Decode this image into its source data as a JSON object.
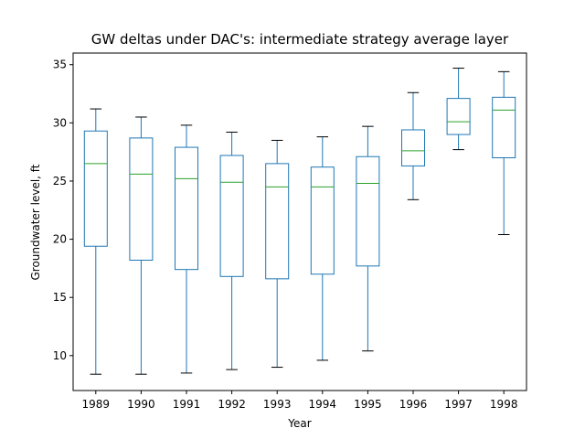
{
  "chart_data": {
    "type": "box",
    "title": "GW deltas under DAC's: intermediate strategy average layer",
    "xlabel": "Year",
    "ylabel": "Groundwater level, ft",
    "ylim": [
      7,
      36
    ],
    "yticks": [
      10,
      15,
      20,
      25,
      30,
      35
    ],
    "grid": false,
    "categories": [
      "1989",
      "1990",
      "1991",
      "1992",
      "1993",
      "1994",
      "1995",
      "1996",
      "1997",
      "1998"
    ],
    "boxes": [
      {
        "category": "1989",
        "whisker_low": 8.4,
        "q1": 19.4,
        "median": 26.5,
        "q3": 29.3,
        "whisker_high": 31.2
      },
      {
        "category": "1990",
        "whisker_low": 8.4,
        "q1": 18.2,
        "median": 25.6,
        "q3": 28.7,
        "whisker_high": 30.5
      },
      {
        "category": "1991",
        "whisker_low": 8.5,
        "q1": 17.4,
        "median": 25.2,
        "q3": 27.9,
        "whisker_high": 29.8
      },
      {
        "category": "1992",
        "whisker_low": 8.8,
        "q1": 16.8,
        "median": 24.9,
        "q3": 27.2,
        "whisker_high": 29.2
      },
      {
        "category": "1993",
        "whisker_low": 9.0,
        "q1": 16.6,
        "median": 24.5,
        "q3": 26.5,
        "whisker_high": 28.5
      },
      {
        "category": "1994",
        "whisker_low": 9.6,
        "q1": 17.0,
        "median": 24.5,
        "q3": 26.2,
        "whisker_high": 28.8
      },
      {
        "category": "1995",
        "whisker_low": 10.4,
        "q1": 17.7,
        "median": 24.8,
        "q3": 27.1,
        "whisker_high": 29.7
      },
      {
        "category": "1996",
        "whisker_low": 23.4,
        "q1": 26.3,
        "median": 27.6,
        "q3": 29.4,
        "whisker_high": 32.6
      },
      {
        "category": "1997",
        "whisker_low": 27.7,
        "q1": 29.0,
        "median": 30.1,
        "q3": 32.1,
        "whisker_high": 34.7
      },
      {
        "category": "1998",
        "whisker_low": 20.4,
        "q1": 27.0,
        "median": 31.1,
        "q3": 32.2,
        "whisker_high": 34.4
      }
    ],
    "colors": {
      "box": "#1f77b4",
      "median": "#2ca02c",
      "whisker": "#1f77b4",
      "cap": "#000000",
      "axes": "#000000"
    }
  }
}
